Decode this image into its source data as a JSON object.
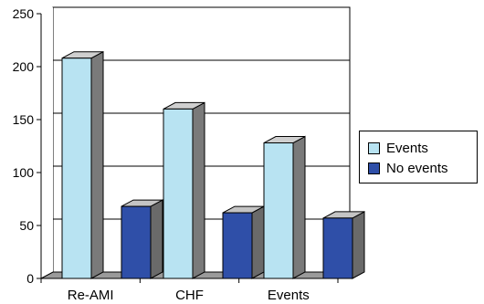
{
  "chart_data": {
    "type": "bar",
    "categories": [
      "Re-AMI",
      "CHF",
      "Events"
    ],
    "series": [
      {
        "name": "Events",
        "values": [
          208,
          160,
          128
        ]
      },
      {
        "name": "No events",
        "values": [
          68,
          62,
          57
        ]
      }
    ],
    "title": "",
    "xlabel": "",
    "ylabel": "",
    "ylim": [
      0,
      250
    ],
    "yticks": [
      "0",
      "50",
      "100",
      "150",
      "200",
      "250"
    ],
    "grid": true,
    "legend_position": "right",
    "three_d": true,
    "colors": {
      "series": [
        "#b8e3f2",
        "#2f4fa8"
      ],
      "bar_side": [
        "#7a7a7a",
        "#6a6a6a"
      ],
      "bar_top": [
        "#cfcfcf",
        "#c4c4c4"
      ],
      "floor": "#9a9a9a",
      "wall": "#ffffff",
      "axis": "#000000"
    }
  }
}
